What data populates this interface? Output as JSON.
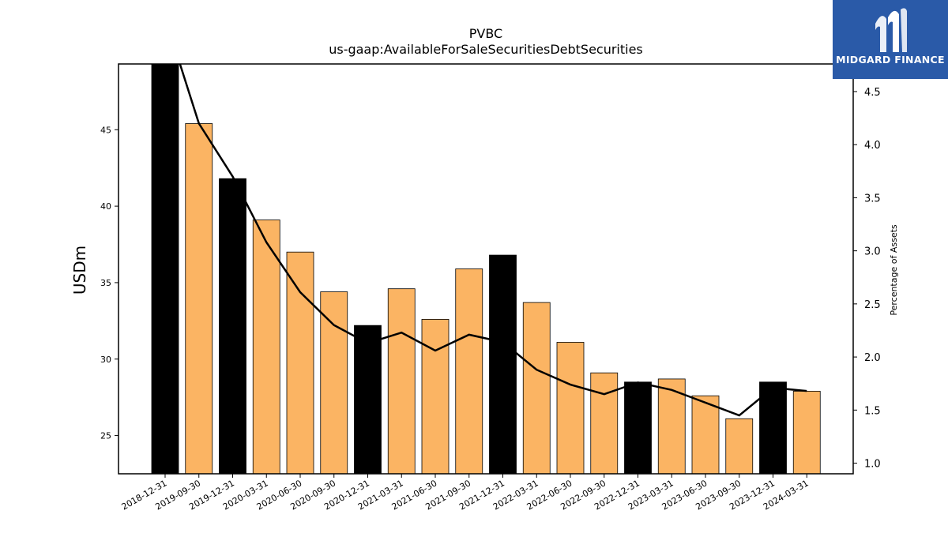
{
  "brand": {
    "name": "MIDGARD FINANCE",
    "color": "#2a5aa8"
  },
  "chart_data": {
    "type": "bar",
    "title": "PVBC",
    "subtitle": "us-gaap:AvailableForSaleSecuritiesDebtSecurities",
    "ylabel": "USDm",
    "y2label": "Percentage of Assets",
    "ylim": [
      22.5,
      49.3
    ],
    "y2lim": [
      0.9,
      4.76
    ],
    "yticks": [
      25,
      30,
      35,
      40,
      45
    ],
    "y2ticks": [
      "1.0",
      "1.5",
      "2.0",
      "2.5",
      "3.0",
      "3.5",
      "4.0",
      "4.5"
    ],
    "categories": [
      "2018-12-31",
      "2019-09-30",
      "2019-12-31",
      "2020-03-31",
      "2020-06-30",
      "2020-09-30",
      "2020-12-31",
      "2021-03-31",
      "2021-06-30",
      "2021-09-30",
      "2021-12-31",
      "2022-03-31",
      "2022-06-30",
      "2022-09-30",
      "2022-12-31",
      "2023-03-31",
      "2023-06-30",
      "2023-09-30",
      "2023-12-31",
      "2024-03-31"
    ],
    "series": [
      {
        "type": "bar",
        "values": [
          49.5,
          45.4,
          41.8,
          39.1,
          37.0,
          34.4,
          32.2,
          34.6,
          32.6,
          35.9,
          36.8,
          33.7,
          31.1,
          29.1,
          28.5,
          28.7,
          27.6,
          26.1,
          28.5,
          27.9
        ],
        "highlight": [
          true,
          false,
          true,
          false,
          false,
          false,
          true,
          false,
          false,
          false,
          true,
          false,
          false,
          false,
          true,
          false,
          false,
          false,
          true,
          false
        ]
      },
      {
        "type": "line",
        "axis": "right",
        "values": [
          5.2,
          4.2,
          3.7,
          3.08,
          2.61,
          2.3,
          2.13,
          2.23,
          2.06,
          2.21,
          2.14,
          1.88,
          1.74,
          1.65,
          1.76,
          1.69,
          1.57,
          1.45,
          1.71,
          1.68
        ]
      }
    ],
    "colors": {
      "bar": "#fbb463",
      "highlight": "#000000",
      "line": "#000000"
    },
    "grid": false
  }
}
